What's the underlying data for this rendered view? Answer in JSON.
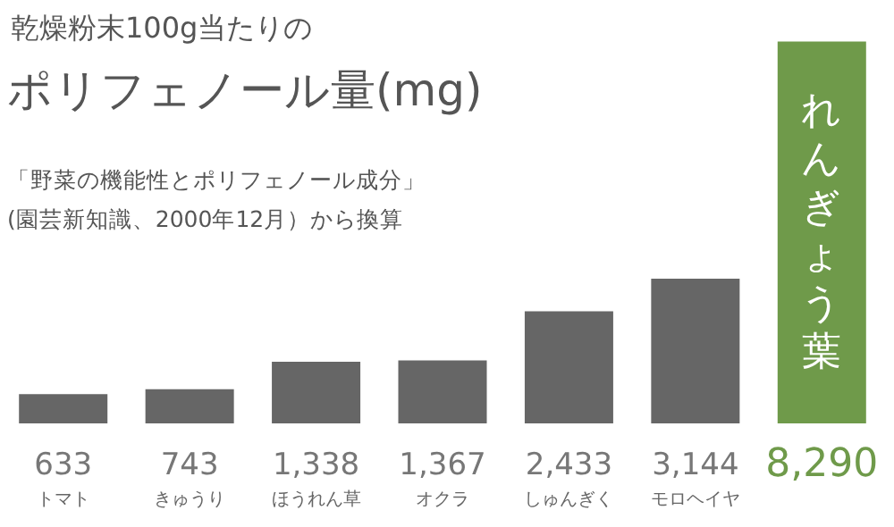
{
  "chart_data": {
    "type": "bar",
    "title": "乾燥粉末100g当たりの",
    "subtitle": "ポリフェノール量(mg)",
    "annotations": [
      "「野菜の機能性とポリフェノール成分」",
      "(園芸新知識、2000年12月）から換算"
    ],
    "categories": [
      "トマト",
      "きゅうり",
      "ほうれん草",
      "オクラ",
      "しゅんぎく",
      "モロヘイヤ",
      "れんぎょう葉"
    ],
    "values": [
      633,
      743,
      1338,
      1367,
      2433,
      3144,
      8290
    ],
    "value_labels": [
      "633",
      "743",
      "1,338",
      "1,367",
      "2,433",
      "3,144",
      "8,290"
    ],
    "colors": [
      "#666666",
      "#666666",
      "#666666",
      "#666666",
      "#666666",
      "#666666",
      "#6f9a4a"
    ],
    "grid": false,
    "legend": false
  }
}
